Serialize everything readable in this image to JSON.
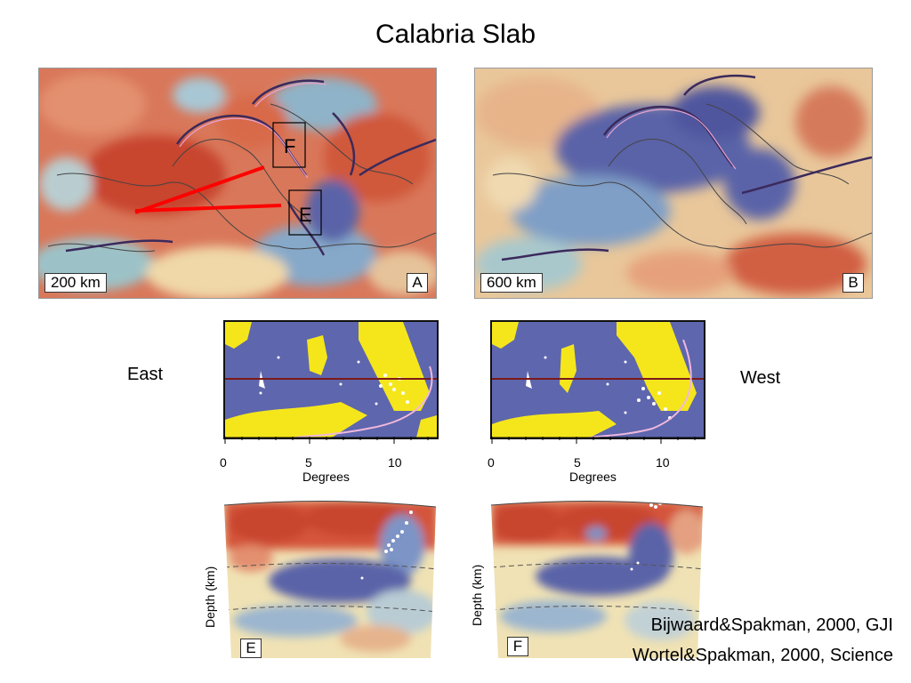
{
  "slide": {
    "title": "Calabria Slab"
  },
  "maps": {
    "a": {
      "scale_label": "200 km",
      "letter": "A",
      "box_f": "F",
      "box_e": "E"
    },
    "b": {
      "scale_label": "600 km",
      "letter": "B"
    }
  },
  "labels": {
    "east": "East",
    "west": "West"
  },
  "axes": {
    "ticks": [
      "0",
      "5",
      "10"
    ],
    "title": "Degrees",
    "depth": "Depth (km)"
  },
  "sections": {
    "e": "E",
    "f": "F"
  },
  "citations": {
    "line1": "Bijwaard&Spakman, 2000, GJI",
    "line2": "Wortel&Spakman, 2000, Science"
  },
  "colors": {
    "slow": "#d4553a",
    "fast": "#5a63a8",
    "neutral": "#f2e7b8",
    "sea": "#5e66ad",
    "land": "#f5e61c",
    "trace": "#ff0000"
  }
}
